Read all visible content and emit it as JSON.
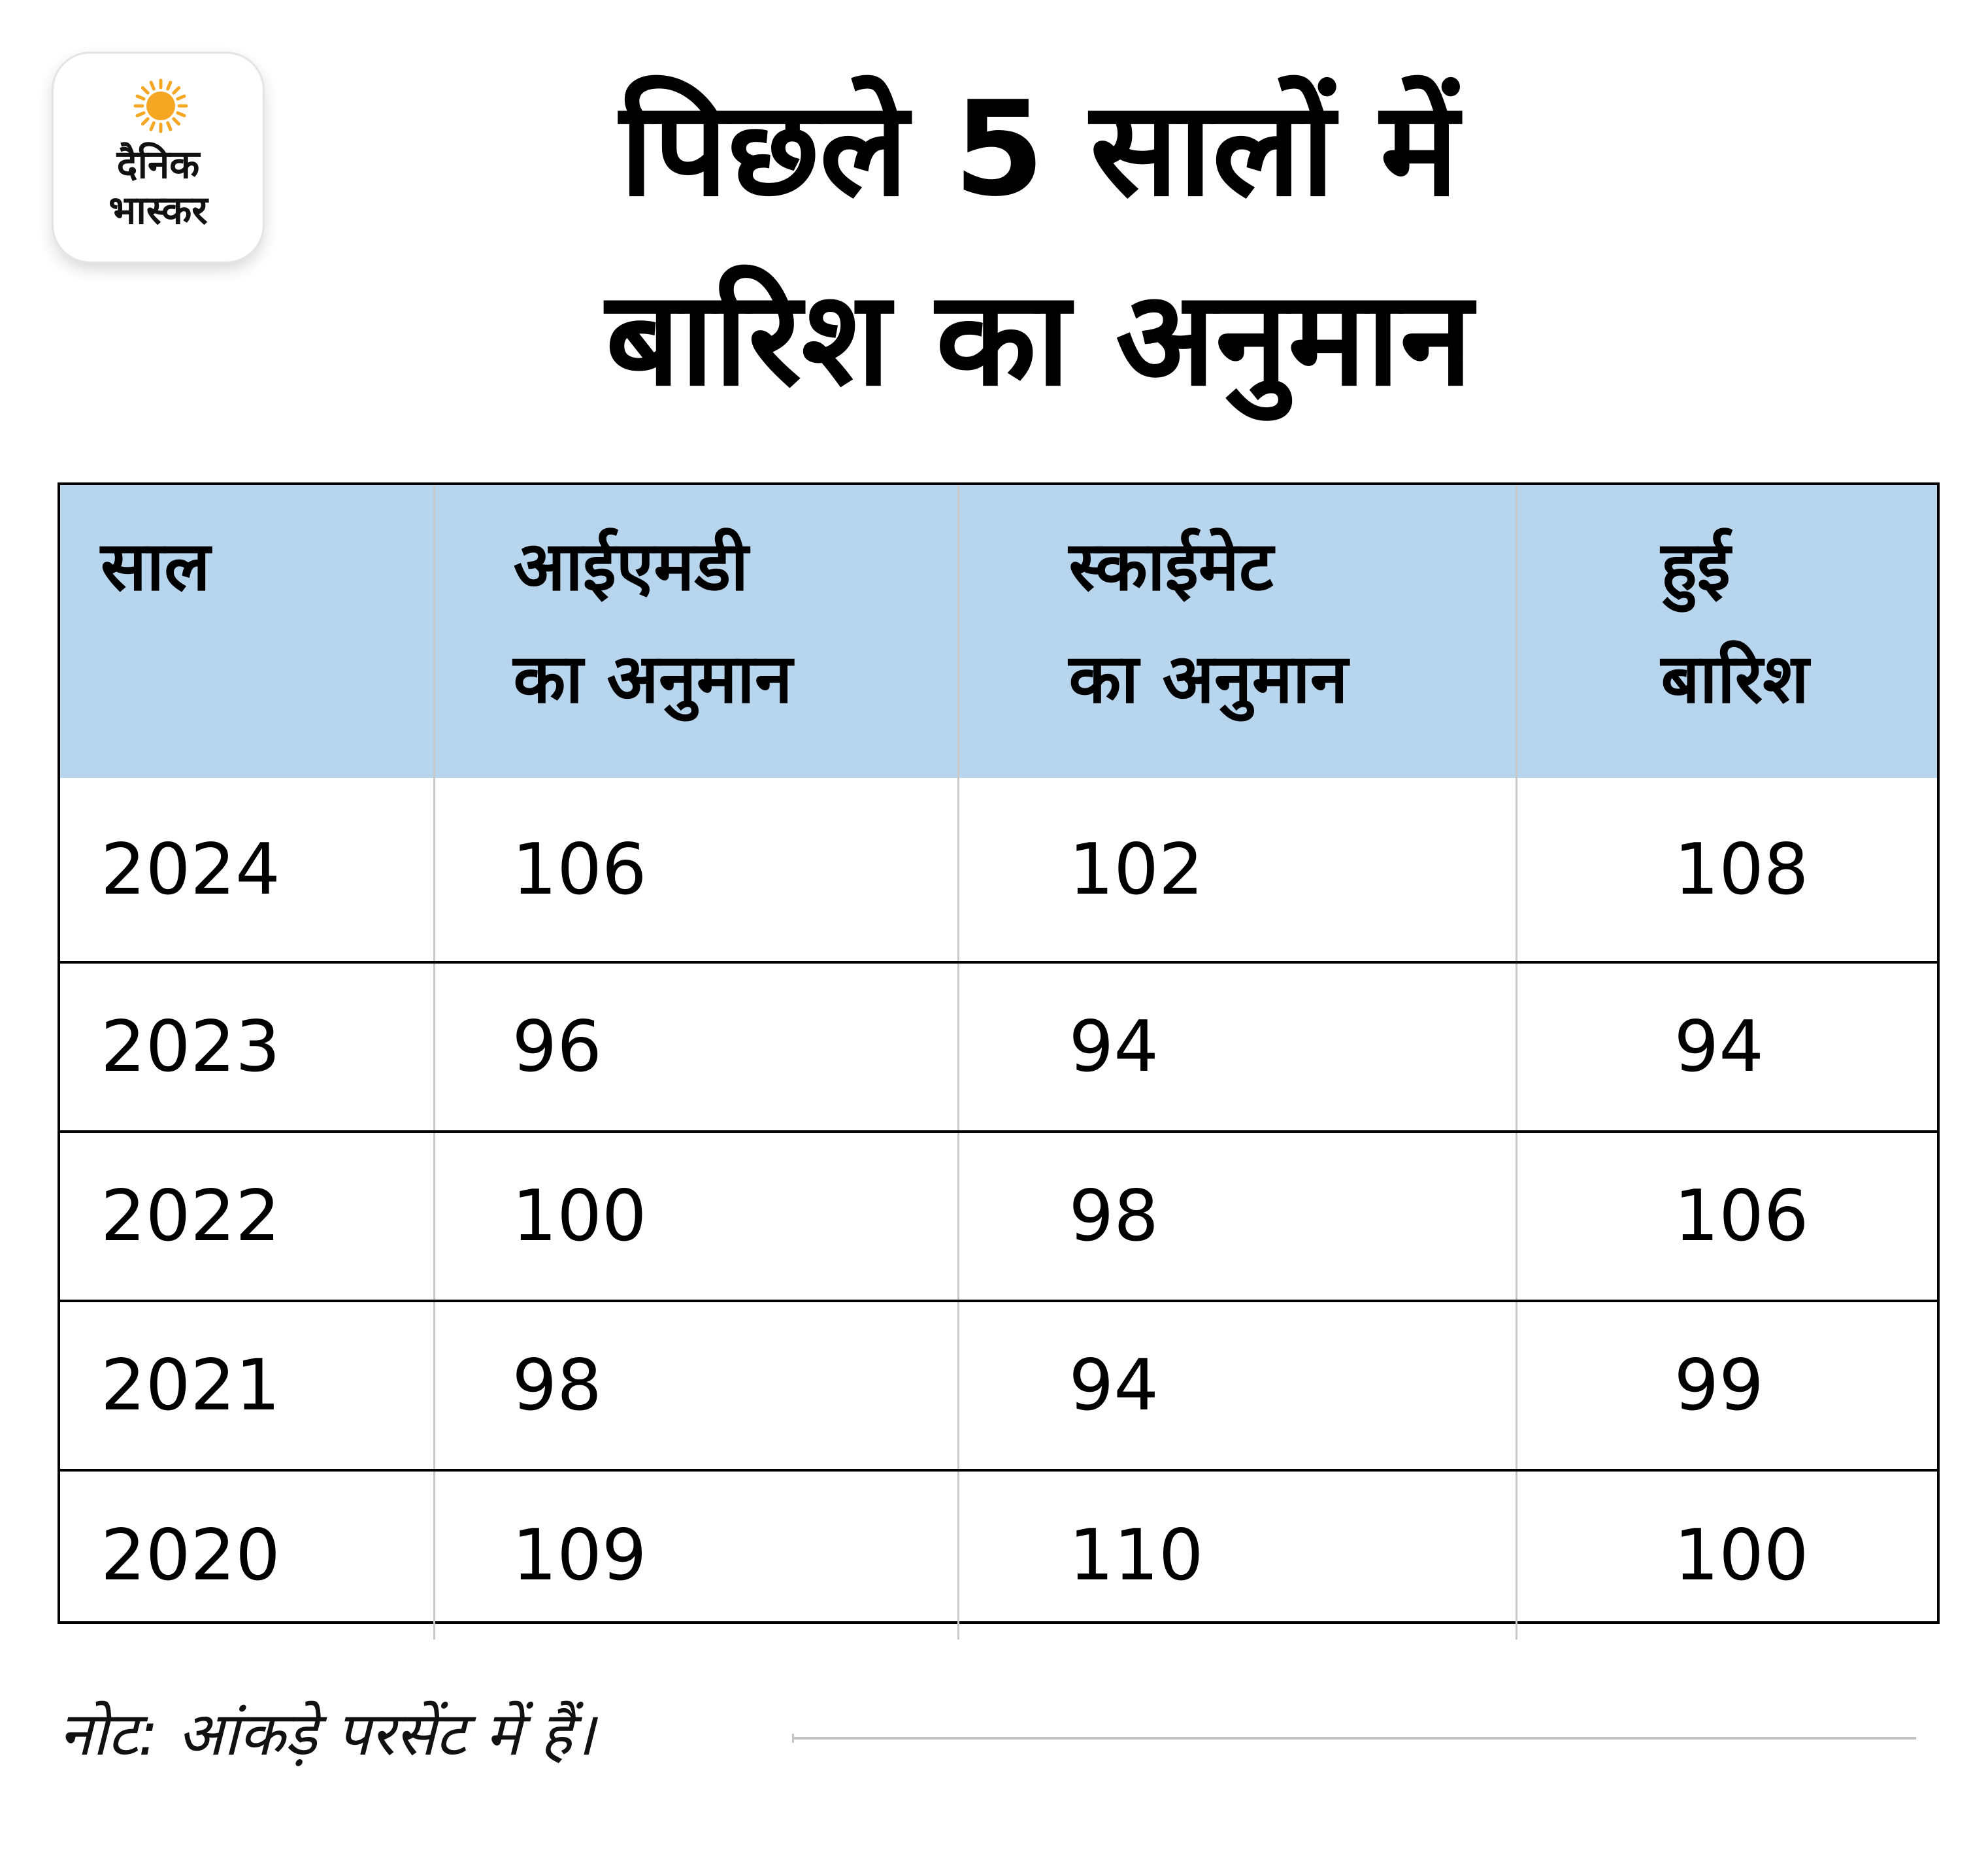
{
  "brand": {
    "logo_line1": "दैनिक",
    "logo_line2": "भास्कर",
    "sun_color": "#f5a623"
  },
  "title": {
    "line1": "पिछले 5 सालों में",
    "line2": "बारिश का अनुमान"
  },
  "colors": {
    "header_bg": "#b8d5ee",
    "grid_line": "#000000",
    "column_divider": "#c9c9c9"
  },
  "chart_data": {
    "type": "table",
    "title": "पिछले 5 सालों में बारिश का अनुमान",
    "columns": [
      {
        "line1": "साल",
        "line2": ""
      },
      {
        "line1": "आईएमडी",
        "line2": "का अनुमान"
      },
      {
        "line1": "स्काईमेट",
        "line2": "का अनुमान"
      },
      {
        "line1": "हुई",
        "line2": "बारिश"
      }
    ],
    "rows": [
      [
        "2024",
        "106",
        "102",
        "108"
      ],
      [
        "2023",
        "96",
        "94",
        "94"
      ],
      [
        "2022",
        "100",
        "98",
        "106"
      ],
      [
        "2021",
        "98",
        "94",
        "99"
      ],
      [
        "2020",
        "109",
        "110",
        "100"
      ]
    ],
    "unit": "percent"
  },
  "footer": {
    "note": "नोट: आंकड़े परसेंट में हैं।"
  }
}
